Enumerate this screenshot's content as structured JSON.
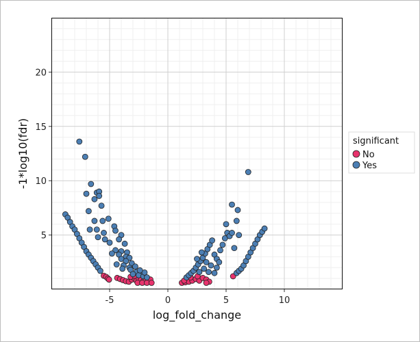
{
  "chart_data": {
    "type": "scatter",
    "xlabel": "log_fold_change",
    "ylabel": "-1*log10(fdr)",
    "xlim": [
      -10,
      15
    ],
    "ylim": [
      0,
      25
    ],
    "xticks": [
      -5,
      0,
      5,
      10
    ],
    "yticks": [
      5,
      10,
      15,
      20
    ],
    "x_tick_labels": [
      "-5",
      "0",
      "5",
      "10"
    ],
    "y_tick_labels": [
      "5",
      "10",
      "15",
      "20"
    ],
    "grid": true,
    "legend": {
      "title": "significant",
      "placement": "right",
      "entries": [
        {
          "label": "No",
          "color": "#e8336d"
        },
        {
          "label": "Yes",
          "color": "#4c7fb4"
        }
      ]
    },
    "series": [
      {
        "name": "No",
        "color": "#e8336d",
        "points": [
          [
            -5.5,
            1.25
          ],
          [
            -5.3,
            1.15
          ],
          [
            -5.15,
            1.0
          ],
          [
            -5.05,
            0.9
          ],
          [
            -4.35,
            1.05
          ],
          [
            -4.1,
            0.95
          ],
          [
            -3.85,
            0.85
          ],
          [
            -3.6,
            0.75
          ],
          [
            -3.35,
            0.7
          ],
          [
            -3.1,
            0.9
          ],
          [
            -2.9,
            1.05
          ],
          [
            -2.7,
            0.8
          ],
          [
            -2.5,
            1.0
          ],
          [
            -2.3,
            0.95
          ],
          [
            -2.1,
            0.75
          ],
          [
            -1.9,
            0.85
          ],
          [
            -1.7,
            0.7
          ],
          [
            -1.5,
            0.9
          ],
          [
            -2.6,
            0.6
          ],
          [
            -2.2,
            0.6
          ],
          [
            -1.8,
            0.6
          ],
          [
            -1.4,
            0.6
          ],
          [
            -3.2,
            1.15
          ],
          [
            -2.85,
            1.25
          ],
          [
            1.2,
            0.6
          ],
          [
            1.5,
            0.65
          ],
          [
            1.8,
            0.7
          ],
          [
            2.1,
            0.8
          ],
          [
            2.4,
            0.95
          ],
          [
            2.7,
            0.8
          ],
          [
            3.0,
            1.05
          ],
          [
            3.3,
            0.9
          ],
          [
            3.55,
            0.7
          ],
          [
            3.3,
            0.6
          ],
          [
            1.4,
            0.8
          ],
          [
            1.95,
            1.1
          ],
          [
            2.55,
            1.2
          ],
          [
            5.6,
            1.2
          ]
        ]
      },
      {
        "name": "Yes",
        "color": "#4c7fb4",
        "points": [
          [
            -7.6,
            13.6
          ],
          [
            -7.1,
            12.2
          ],
          [
            -6.6,
            9.7
          ],
          [
            -6.1,
            8.9
          ],
          [
            -5.9,
            9.0
          ],
          [
            -5.9,
            8.6
          ],
          [
            -6.3,
            8.3
          ],
          [
            -7.0,
            8.8
          ],
          [
            -5.7,
            7.7
          ],
          [
            -6.8,
            7.2
          ],
          [
            -5.6,
            6.3
          ],
          [
            -5.1,
            6.5
          ],
          [
            -6.3,
            6.3
          ],
          [
            -6.7,
            5.5
          ],
          [
            -6.1,
            5.5
          ],
          [
            -5.5,
            5.2
          ],
          [
            -6.0,
            4.8
          ],
          [
            -5.4,
            4.6
          ],
          [
            -5.0,
            4.3
          ],
          [
            -4.6,
            5.8
          ],
          [
            -4.5,
            5.4
          ],
          [
            -4.0,
            5.0
          ],
          [
            -4.2,
            4.6
          ],
          [
            -3.7,
            4.2
          ],
          [
            -4.5,
            3.6
          ],
          [
            -4.0,
            3.5
          ],
          [
            -3.5,
            3.4
          ],
          [
            -4.8,
            3.3
          ],
          [
            -4.2,
            3.2
          ],
          [
            -3.6,
            3.0
          ],
          [
            -3.3,
            2.9
          ],
          [
            -4.0,
            2.8
          ],
          [
            -3.6,
            2.6
          ],
          [
            -3.1,
            2.4
          ],
          [
            -4.4,
            2.3
          ],
          [
            -3.8,
            2.2
          ],
          [
            -3.3,
            2.0
          ],
          [
            -2.8,
            2.1
          ],
          [
            -3.9,
            1.9
          ],
          [
            -3.2,
            1.8
          ],
          [
            -2.7,
            1.6
          ],
          [
            -2.3,
            1.5
          ],
          [
            -3.0,
            1.4
          ],
          [
            -2.5,
            1.3
          ],
          [
            -2.1,
            1.2
          ],
          [
            -1.8,
            1.1
          ],
          [
            -2.0,
            1.55
          ],
          [
            -2.4,
            1.75
          ],
          [
            -8.8,
            6.9
          ],
          [
            -8.6,
            6.6
          ],
          [
            -8.4,
            6.2
          ],
          [
            -8.2,
            5.8
          ],
          [
            -8.0,
            5.5
          ],
          [
            -7.8,
            5.1
          ],
          [
            -7.6,
            4.7
          ],
          [
            -7.4,
            4.3
          ],
          [
            -7.2,
            3.9
          ],
          [
            -7.0,
            3.5
          ],
          [
            -6.8,
            3.2
          ],
          [
            -6.6,
            2.9
          ],
          [
            -6.4,
            2.6
          ],
          [
            -6.2,
            2.3
          ],
          [
            -6.0,
            2.0
          ],
          [
            -5.8,
            1.7
          ],
          [
            1.6,
            1.1
          ],
          [
            1.8,
            1.3
          ],
          [
            2.0,
            1.5
          ],
          [
            2.2,
            1.7
          ],
          [
            2.4,
            2.0
          ],
          [
            2.6,
            2.3
          ],
          [
            2.8,
            2.6
          ],
          [
            3.0,
            2.9
          ],
          [
            3.2,
            3.3
          ],
          [
            3.4,
            3.7
          ],
          [
            3.6,
            4.1
          ],
          [
            3.8,
            4.5
          ],
          [
            2.9,
            3.4
          ],
          [
            2.5,
            2.8
          ],
          [
            3.3,
            2.5
          ],
          [
            3.7,
            2.2
          ],
          [
            3.1,
            1.9
          ],
          [
            2.7,
            1.6
          ],
          [
            3.5,
            1.6
          ],
          [
            4.0,
            3.2
          ],
          [
            4.2,
            2.8
          ],
          [
            4.5,
            3.6
          ],
          [
            4.7,
            4.1
          ],
          [
            4.9,
            4.7
          ],
          [
            5.1,
            5.2
          ],
          [
            5.0,
            6.0
          ],
          [
            5.3,
            4.9
          ],
          [
            5.5,
            5.2
          ],
          [
            5.9,
            6.3
          ],
          [
            6.1,
            5.0
          ],
          [
            5.7,
            3.8
          ],
          [
            4.4,
            2.5
          ],
          [
            4.2,
            2.0
          ],
          [
            4.0,
            1.5
          ],
          [
            5.9,
            1.5
          ],
          [
            6.1,
            1.7
          ],
          [
            6.3,
            1.9
          ],
          [
            6.5,
            2.2
          ],
          [
            6.7,
            2.6
          ],
          [
            6.9,
            3.0
          ],
          [
            7.1,
            3.4
          ],
          [
            7.3,
            3.8
          ],
          [
            7.5,
            4.2
          ],
          [
            7.7,
            4.6
          ],
          [
            7.9,
            5.0
          ],
          [
            8.1,
            5.3
          ],
          [
            8.3,
            5.6
          ],
          [
            5.5,
            7.8
          ],
          [
            6.0,
            7.3
          ],
          [
            6.9,
            10.8
          ]
        ]
      }
    ]
  }
}
